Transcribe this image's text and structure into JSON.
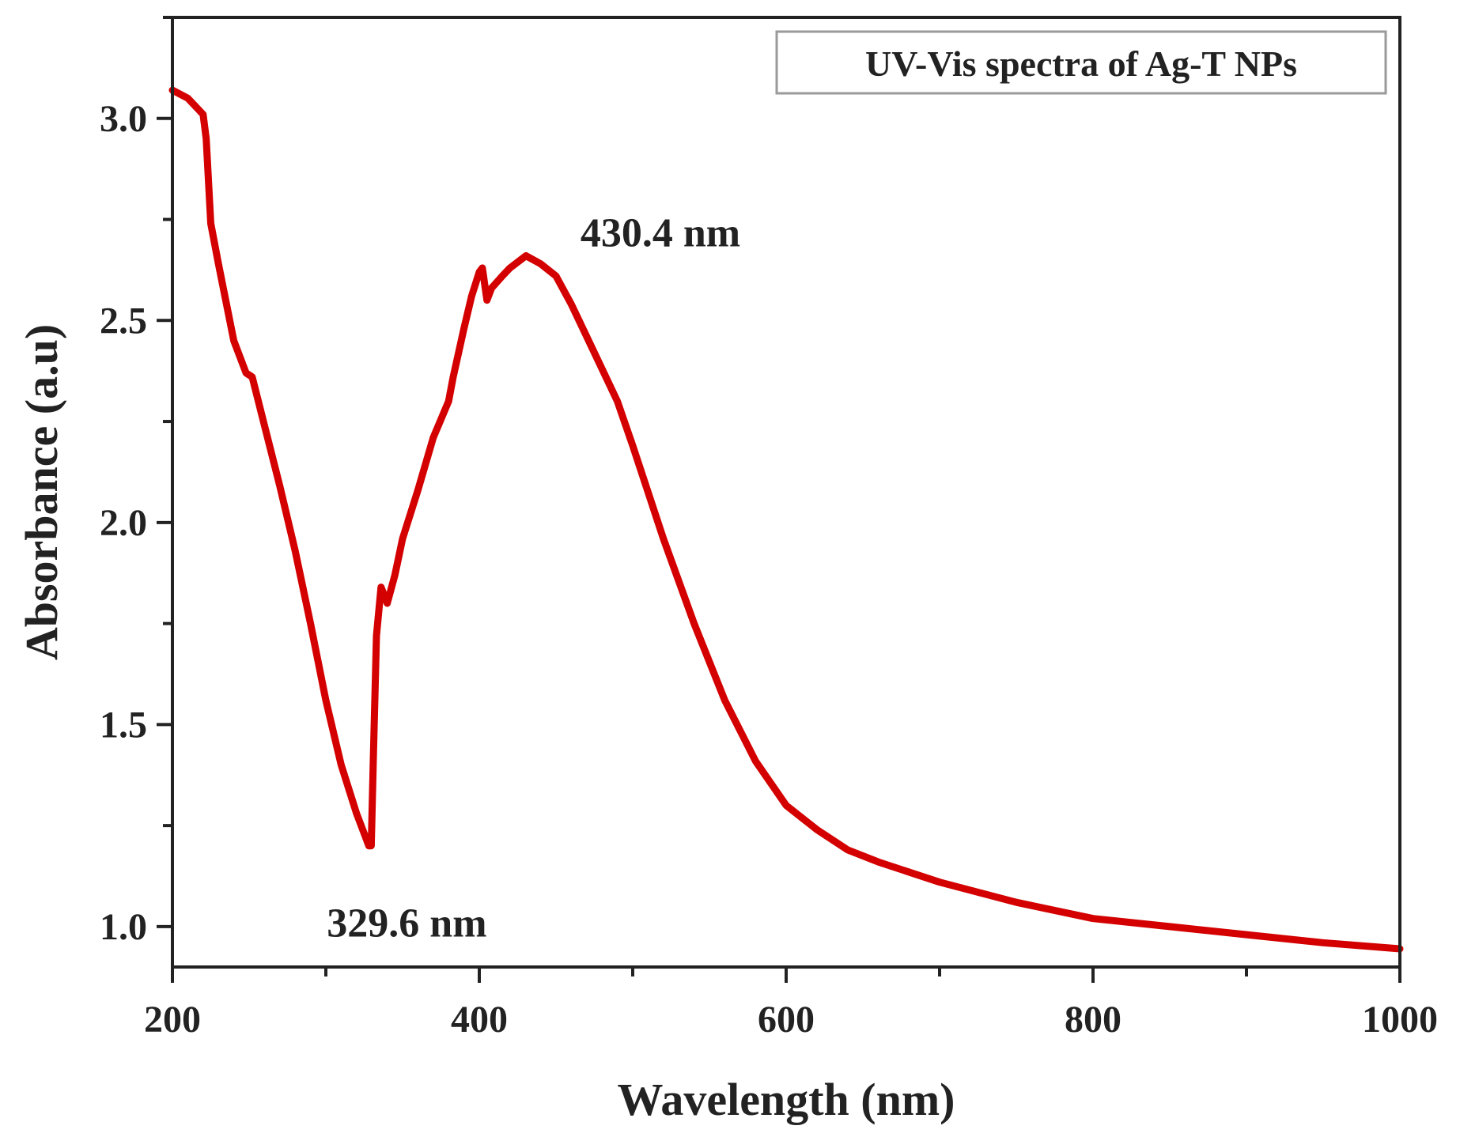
{
  "chart_data": {
    "type": "line",
    "title": "UV-Vis spectra of Ag-T NPs",
    "xlabel": "Wavelength (nm)",
    "ylabel": "Absorbance (a.u)",
    "xlim": [
      200,
      1000
    ],
    "ylim": [
      0.9,
      3.25
    ],
    "xticks": [
      200,
      400,
      600,
      800,
      1000
    ],
    "xtick_labels": [
      "200",
      "400",
      "600",
      "800",
      "1000"
    ],
    "yticks": [
      1.0,
      1.5,
      2.0,
      2.5,
      3.0
    ],
    "ytick_labels": [
      "1.0",
      "1.5",
      "2.0",
      "2.5",
      "3.0"
    ],
    "grid": false,
    "legend": {
      "position": "top-right",
      "label": "UV-Vis spectra of Ag-T NPs"
    },
    "series": [
      {
        "name": "Ag-T NPs",
        "color": "#d40000",
        "x": [
          200,
          210,
          220,
          222,
          225,
          230,
          240,
          248,
          252,
          260,
          270,
          280,
          290,
          300,
          310,
          320,
          325,
          328,
          329.6,
          331,
          333,
          336,
          340,
          345,
          350,
          360,
          370,
          380,
          383,
          390,
          395,
          400,
          402,
          405,
          408,
          415,
          420,
          430.4,
          440,
          450,
          460,
          470,
          480,
          490,
          500,
          520,
          540,
          560,
          580,
          600,
          620,
          640,
          660,
          700,
          750,
          800,
          850,
          900,
          950,
          1000
        ],
        "values": [
          3.07,
          3.05,
          3.01,
          2.95,
          2.74,
          2.64,
          2.45,
          2.37,
          2.36,
          2.24,
          2.09,
          1.93,
          1.75,
          1.56,
          1.4,
          1.28,
          1.23,
          1.2,
          1.2,
          1.42,
          1.72,
          1.84,
          1.8,
          1.87,
          1.96,
          2.08,
          2.21,
          2.3,
          2.36,
          2.48,
          2.56,
          2.62,
          2.63,
          2.55,
          2.58,
          2.61,
          2.63,
          2.66,
          2.64,
          2.61,
          2.54,
          2.46,
          2.38,
          2.3,
          2.19,
          1.96,
          1.75,
          1.56,
          1.41,
          1.3,
          1.24,
          1.19,
          1.16,
          1.11,
          1.06,
          1.02,
          1.0,
          0.98,
          0.96,
          0.945
        ]
      }
    ],
    "annotations": [
      {
        "text": "430.4 nm",
        "x": 430.4,
        "y": 2.66
      },
      {
        "text": "329.6 nm",
        "x": 329.6,
        "y": 1.2
      }
    ],
    "colors": {
      "line": "#d40000",
      "axis": "#222222",
      "background": "#ffffff"
    }
  }
}
